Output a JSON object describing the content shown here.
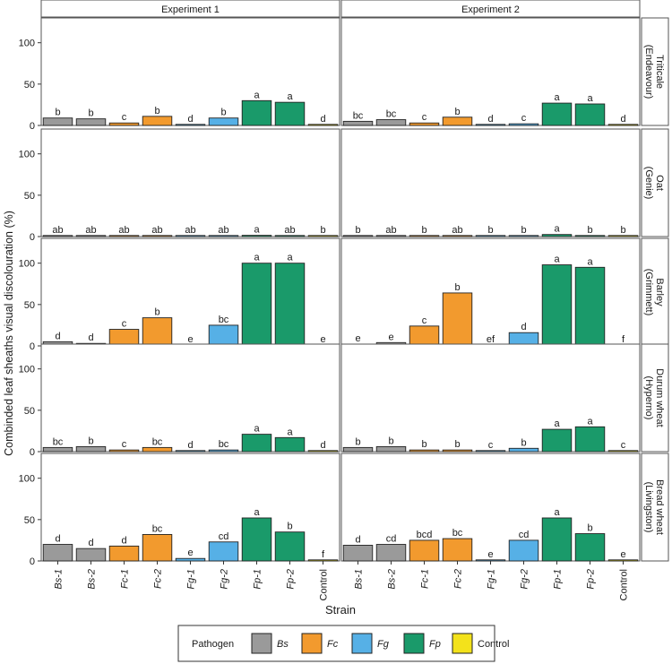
{
  "chart_data": {
    "type": "bar",
    "title": "",
    "xlabel": "Strain",
    "ylabel": "Combinded leaf sheaths visual discolouration (%)",
    "ylim": [
      0,
      130
    ],
    "yticks": [
      0,
      50,
      100
    ],
    "grid": false,
    "legend_position": "bottom",
    "categories": [
      "Bs-1",
      "Bs-2",
      "Fc-1",
      "Fc-2",
      "Fg-1",
      "Fg-2",
      "Fp-1",
      "Fp-2",
      "Control"
    ],
    "category_pathogen": [
      "Bs",
      "Bs",
      "Fc",
      "Fc",
      "Fg",
      "Fg",
      "Fp",
      "Fp",
      "Control"
    ],
    "columns": [
      "Experiment 1",
      "Experiment 2"
    ],
    "rows": [
      {
        "label_line1": "Triticale",
        "label_line2": "(Endeavour)"
      },
      {
        "label_line1": "Oat",
        "label_line2": "(Genie)"
      },
      {
        "label_line1": "Barley",
        "label_line2": "(Grimmett)"
      },
      {
        "label_line1": "Durum wheat",
        "label_line2": "(Hyperno)"
      },
      {
        "label_line1": "Bread wheat",
        "label_line2": "(Livingston)"
      }
    ],
    "panels": [
      {
        "row": 0,
        "col": 0,
        "values": [
          9,
          8,
          3,
          11,
          0,
          9,
          30,
          28,
          0
        ],
        "letters": [
          "b",
          "b",
          "c",
          "b",
          "d",
          "b",
          "a",
          "a",
          "d"
        ]
      },
      {
        "row": 0,
        "col": 1,
        "values": [
          5,
          7,
          3,
          10,
          0,
          2,
          27,
          26,
          0
        ],
        "letters": [
          "bc",
          "bc",
          "c",
          "b",
          "d",
          "c",
          "a",
          "a",
          "d"
        ]
      },
      {
        "row": 1,
        "col": 0,
        "values": [
          0.3,
          0.3,
          0.3,
          0.3,
          0.3,
          0.3,
          1.5,
          0.3,
          0.3
        ],
        "letters": [
          "ab",
          "ab",
          "ab",
          "ab",
          "ab",
          "ab",
          "a",
          "ab",
          "b"
        ]
      },
      {
        "row": 1,
        "col": 1,
        "values": [
          0.3,
          0.3,
          0.3,
          0.3,
          0.3,
          0.3,
          2.5,
          0.3,
          0.3
        ],
        "letters": [
          "b",
          "ab",
          "b",
          "ab",
          "b",
          "b",
          "a",
          "b",
          "b"
        ]
      },
      {
        "row": 2,
        "col": 0,
        "values": [
          5,
          3,
          20,
          34,
          0,
          25,
          100,
          100,
          0
        ],
        "letters": [
          "d",
          "d",
          "c",
          "b",
          "e",
          "bc",
          "a",
          "a",
          "e"
        ]
      },
      {
        "row": 2,
        "col": 1,
        "values": [
          2,
          4,
          24,
          64,
          0,
          16,
          98,
          95,
          0
        ],
        "letters": [
          "e",
          "e",
          "c",
          "b",
          "ef",
          "d",
          "a",
          "a",
          "f"
        ]
      },
      {
        "row": 3,
        "col": 0,
        "values": [
          5,
          6,
          2,
          5,
          0,
          2,
          21,
          17,
          0
        ],
        "letters": [
          "bc",
          "b",
          "c",
          "bc",
          "d",
          "bc",
          "a",
          "a",
          "d"
        ]
      },
      {
        "row": 3,
        "col": 1,
        "values": [
          5,
          6,
          2,
          2,
          0,
          4,
          27,
          30,
          0
        ],
        "letters": [
          "b",
          "b",
          "b",
          "b",
          "c",
          "b",
          "a",
          "a",
          "c"
        ]
      },
      {
        "row": 4,
        "col": 0,
        "values": [
          20,
          15,
          18,
          32,
          3,
          23,
          52,
          35,
          0
        ],
        "letters": [
          "d",
          "d",
          "d",
          "bc",
          "e",
          "cd",
          "a",
          "b",
          "f"
        ]
      },
      {
        "row": 4,
        "col": 1,
        "values": [
          19,
          20,
          25,
          27,
          1,
          25,
          52,
          33,
          0
        ],
        "letters": [
          "d",
          "cd",
          "bcd",
          "bc",
          "e",
          "cd",
          "a",
          "b",
          "e"
        ]
      }
    ],
    "legend": {
      "title": "Pathogen",
      "entries": [
        {
          "key": "Bs",
          "label": "Bs",
          "color": "#9a9a9a",
          "italic": true
        },
        {
          "key": "Fc",
          "label": "Fc",
          "color": "#f29a2e",
          "italic": true
        },
        {
          "key": "Fg",
          "label": "Fg",
          "color": "#56b0e6",
          "italic": true
        },
        {
          "key": "Fp",
          "label": "Fp",
          "color": "#1a9a6a",
          "italic": true
        },
        {
          "key": "Control",
          "label": "Control",
          "color": "#f3e21b",
          "italic": false
        }
      ]
    }
  }
}
